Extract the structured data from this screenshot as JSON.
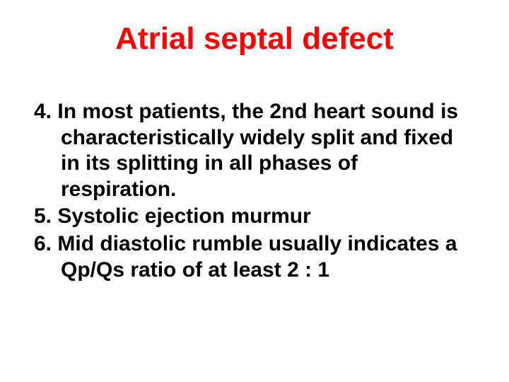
{
  "title": {
    "text": "Atrial septal defect",
    "color": "#ff0000",
    "fontsize": 44,
    "weight": "bold"
  },
  "body": {
    "color": "#000000",
    "fontsize": 30,
    "weight": "bold",
    "items": [
      {
        "num": "4.",
        "text": "In most patients, the 2nd heart sound is characteristically widely split and fixed in its splitting in all phases of respiration."
      },
      {
        "num": "5.",
        "text": "Systolic ejection murmur"
      },
      {
        "num": "6.",
        "text": "Mid diastolic rumble usually indicates a Qp/Qs ratio of at least 2 : 1"
      }
    ]
  },
  "background_color": "#ffffff",
  "slide_width": 720,
  "slide_height": 540
}
